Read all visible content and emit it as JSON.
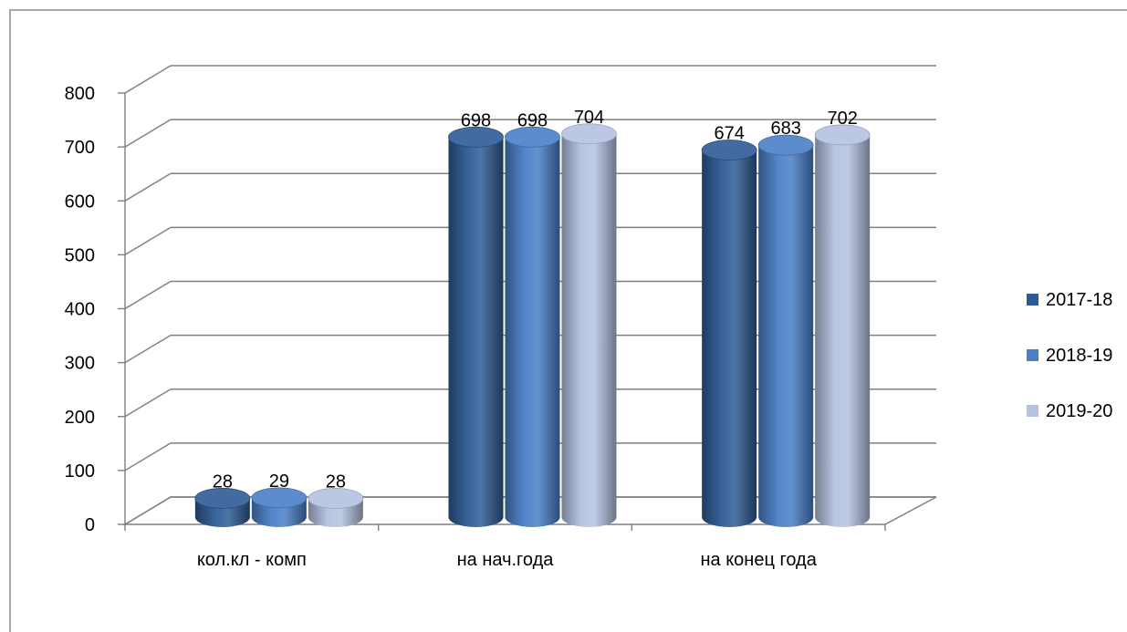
{
  "chart_data": {
    "type": "bar",
    "categories": [
      "кол.кл - комп",
      "на нач.года",
      "на конец года"
    ],
    "series": [
      {
        "name": "2017-18",
        "values": [
          28,
          698,
          674
        ],
        "color": "#2e5b94"
      },
      {
        "name": "2018-19",
        "values": [
          29,
          698,
          683
        ],
        "color": "#4a7fc6"
      },
      {
        "name": "2019-20",
        "values": [
          28,
          704,
          702
        ],
        "color": "#b4c2e0"
      }
    ],
    "ylim": [
      0,
      800
    ],
    "yticks": [
      0,
      100,
      200,
      300,
      400,
      500,
      600,
      700,
      800
    ],
    "grid": true,
    "legend_position": "right",
    "bar_shape": "3d-cylinder"
  }
}
